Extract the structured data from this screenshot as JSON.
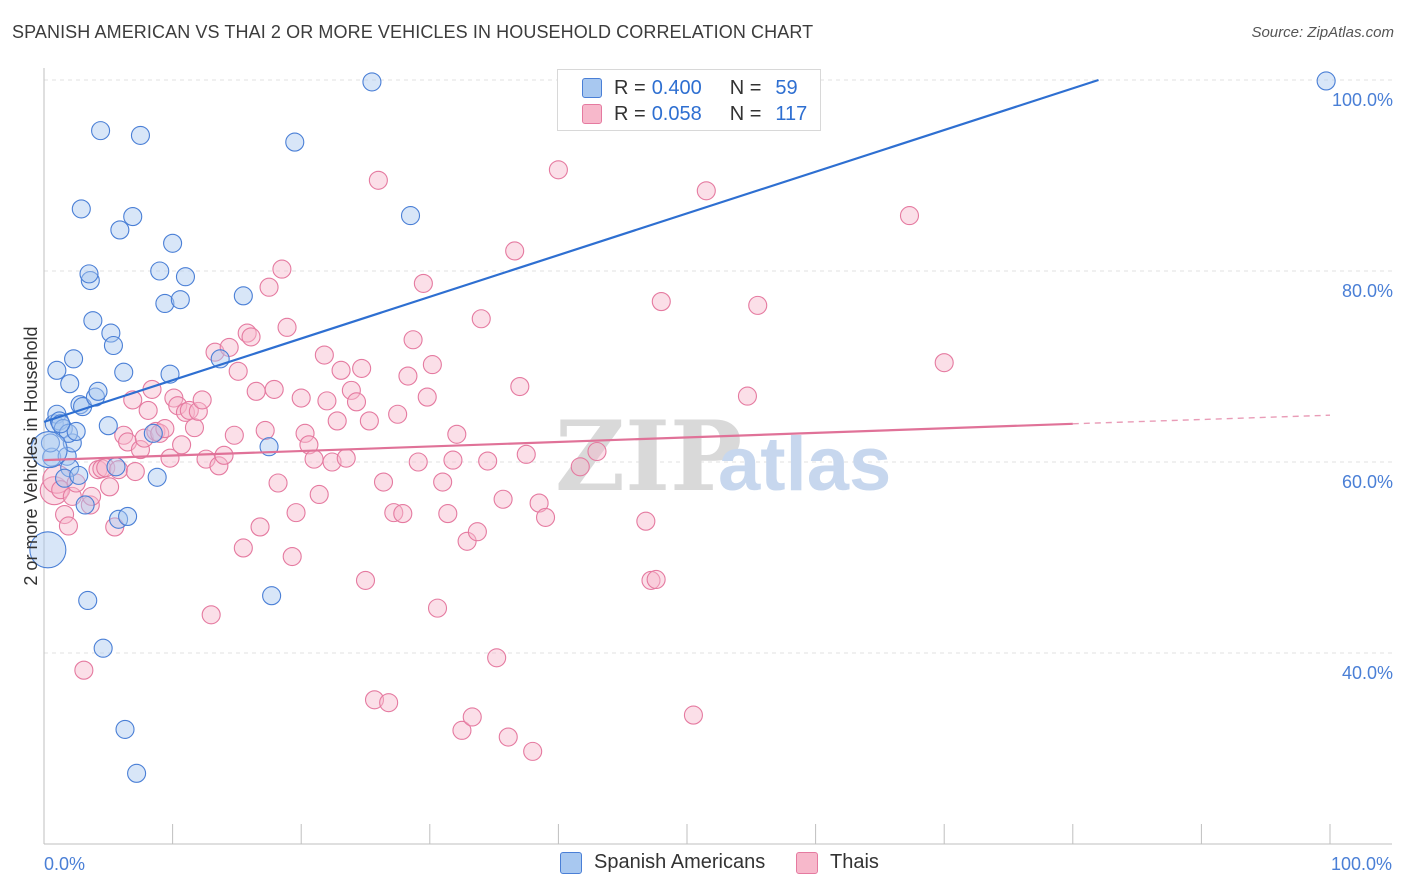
{
  "title": "SPANISH AMERICAN VS THAI 2 OR MORE VEHICLES IN HOUSEHOLD CORRELATION CHART",
  "source": "Source: ZipAtlas.com",
  "watermark": {
    "zip": "ZIP",
    "atlas": "atlas"
  },
  "legend_top": {
    "rows": [
      {
        "r_label": "R =",
        "r_value": "0.400",
        "n_label": "N =",
        "n_value": "59",
        "color": "#a8c8f0",
        "border": "#4a7fd6"
      },
      {
        "r_label": "R =",
        "r_value": "0.058",
        "n_label": "N =",
        "n_value": "117",
        "color": "#f7b8cb",
        "border": "#e57aa0"
      }
    ]
  },
  "legend_bottom": {
    "items": [
      {
        "label": "Spanish Americans",
        "color": "#a8c8f0",
        "border": "#4a7fd6"
      },
      {
        "label": "Thais",
        "color": "#f7b8cb",
        "border": "#e57aa0"
      }
    ]
  },
  "chart_data": {
    "type": "scatter",
    "title": "SPANISH AMERICAN VS THAI 2 OR MORE VEHICLES IN HOUSEHOLD CORRELATION CHART",
    "xlabel": "",
    "ylabel": "2 or more Vehicles in Household",
    "xlim": [
      0,
      100
    ],
    "ylim": [
      20,
      100
    ],
    "x_tick_labels": [
      "0.0%",
      "100.0%"
    ],
    "y_ticks": [
      40,
      60,
      80,
      100
    ],
    "y_tick_labels": [
      "40.0%",
      "60.0%",
      "80.0%",
      "100.0%"
    ],
    "grid": true,
    "legend_position": "top-center",
    "series": [
      {
        "name": "Spanish Americans",
        "color": "#a8c8f0",
        "stroke": "#4a7fd6",
        "trend": {
          "x0": 0,
          "y0": 64.2,
          "x1": 82,
          "y1": 100,
          "color": "#2e6fd1"
        },
        "points": [
          [
            0.3,
            50.8
          ],
          [
            0.6,
            60.5
          ],
          [
            0.5,
            62.0
          ],
          [
            0.8,
            64.0
          ],
          [
            1.0,
            65.0
          ],
          [
            1.2,
            64.3
          ],
          [
            1.5,
            63.5
          ],
          [
            1.8,
            60.6
          ],
          [
            2.0,
            59.4
          ],
          [
            2.2,
            62.0
          ],
          [
            2.0,
            68.2
          ],
          [
            2.3,
            70.8
          ],
          [
            1.0,
            69.6
          ],
          [
            1.6,
            58.3
          ],
          [
            1.9,
            63.0
          ],
          [
            2.5,
            63.2
          ],
          [
            2.8,
            66.0
          ],
          [
            3.0,
            65.8
          ],
          [
            3.2,
            55.5
          ],
          [
            3.4,
            45.5
          ],
          [
            3.6,
            79.0
          ],
          [
            3.5,
            79.7
          ],
          [
            3.8,
            74.8
          ],
          [
            4.0,
            66.8
          ],
          [
            4.2,
            67.4
          ],
          [
            4.4,
            94.7
          ],
          [
            2.9,
            86.5
          ],
          [
            5.0,
            63.8
          ],
          [
            5.2,
            73.5
          ],
          [
            5.4,
            72.2
          ],
          [
            5.6,
            59.5
          ],
          [
            5.8,
            54.0
          ],
          [
            5.9,
            84.3
          ],
          [
            6.2,
            69.4
          ],
          [
            6.3,
            32.0
          ],
          [
            7.2,
            27.4
          ],
          [
            6.9,
            85.7
          ],
          [
            7.5,
            94.2
          ],
          [
            8.5,
            63.0
          ],
          [
            8.8,
            58.4
          ],
          [
            9.0,
            80.0
          ],
          [
            9.4,
            76.6
          ],
          [
            9.8,
            69.2
          ],
          [
            10.0,
            82.9
          ],
          [
            10.6,
            77.0
          ],
          [
            11.0,
            79.4
          ],
          [
            13.7,
            70.8
          ],
          [
            15.5,
            77.4
          ],
          [
            17.5,
            61.6
          ],
          [
            17.7,
            46.0
          ],
          [
            19.5,
            93.5
          ],
          [
            25.5,
            99.8
          ],
          [
            28.5,
            85.8
          ],
          [
            0.4,
            61.3
          ],
          [
            1.3,
            64.0
          ],
          [
            2.7,
            58.6
          ],
          [
            4.6,
            40.5
          ],
          [
            6.5,
            54.3
          ],
          [
            99.7,
            99.9
          ]
        ]
      },
      {
        "name": "Thais",
        "color": "#f7b8cb",
        "stroke": "#e57aa0",
        "trend": {
          "x0": 0,
          "y0": 60.2,
          "x1": 80,
          "y1": 64.0,
          "x2": 100,
          "y2": 64.9,
          "color": "#e07298"
        },
        "points": [
          [
            0.8,
            57.0
          ],
          [
            1.0,
            58.2
          ],
          [
            1.3,
            57.1
          ],
          [
            1.6,
            54.5
          ],
          [
            1.9,
            53.3
          ],
          [
            2.2,
            56.4
          ],
          [
            2.5,
            57.8
          ],
          [
            3.1,
            38.2
          ],
          [
            3.6,
            55.5
          ],
          [
            3.7,
            56.4
          ],
          [
            4.2,
            59.2
          ],
          [
            4.5,
            59.3
          ],
          [
            4.8,
            59.4
          ],
          [
            5.1,
            57.4
          ],
          [
            5.5,
            53.2
          ],
          [
            5.8,
            59.2
          ],
          [
            6.2,
            62.8
          ],
          [
            6.5,
            62.1
          ],
          [
            6.9,
            66.5
          ],
          [
            7.1,
            59.0
          ],
          [
            7.5,
            61.3
          ],
          [
            7.8,
            62.5
          ],
          [
            8.1,
            65.4
          ],
          [
            8.4,
            67.6
          ],
          [
            8.7,
            63.2
          ],
          [
            9.0,
            63.0
          ],
          [
            9.4,
            63.5
          ],
          [
            9.8,
            60.4
          ],
          [
            10.1,
            66.7
          ],
          [
            10.4,
            65.9
          ],
          [
            10.7,
            61.8
          ],
          [
            11.0,
            65.2
          ],
          [
            11.3,
            65.4
          ],
          [
            11.7,
            63.6
          ],
          [
            12.0,
            65.3
          ],
          [
            12.3,
            66.5
          ],
          [
            12.6,
            60.3
          ],
          [
            13.0,
            44.0
          ],
          [
            13.3,
            71.5
          ],
          [
            13.6,
            59.6
          ],
          [
            14.0,
            60.7
          ],
          [
            14.4,
            72.0
          ],
          [
            14.8,
            62.8
          ],
          [
            15.1,
            69.5
          ],
          [
            15.5,
            51.0
          ],
          [
            15.8,
            73.5
          ],
          [
            16.1,
            73.1
          ],
          [
            16.5,
            67.4
          ],
          [
            16.8,
            53.2
          ],
          [
            17.2,
            63.3
          ],
          [
            17.5,
            78.3
          ],
          [
            17.9,
            67.6
          ],
          [
            18.2,
            57.8
          ],
          [
            18.5,
            80.2
          ],
          [
            18.9,
            74.1
          ],
          [
            19.3,
            50.1
          ],
          [
            19.6,
            54.7
          ],
          [
            20.0,
            66.7
          ],
          [
            20.3,
            63.0
          ],
          [
            20.6,
            61.8
          ],
          [
            21.0,
            60.3
          ],
          [
            21.4,
            56.6
          ],
          [
            21.8,
            71.2
          ],
          [
            22.0,
            66.4
          ],
          [
            22.4,
            60.0
          ],
          [
            22.8,
            64.3
          ],
          [
            23.1,
            69.6
          ],
          [
            23.5,
            60.4
          ],
          [
            23.9,
            67.5
          ],
          [
            24.3,
            66.3
          ],
          [
            24.7,
            69.8
          ],
          [
            25.0,
            47.6
          ],
          [
            25.3,
            64.3
          ],
          [
            25.7,
            35.1
          ],
          [
            26.0,
            89.5
          ],
          [
            26.4,
            57.9
          ],
          [
            26.8,
            34.8
          ],
          [
            27.2,
            54.7
          ],
          [
            27.5,
            65.0
          ],
          [
            27.9,
            54.6
          ],
          [
            28.3,
            69.0
          ],
          [
            28.7,
            72.8
          ],
          [
            29.1,
            60.0
          ],
          [
            29.5,
            78.7
          ],
          [
            29.8,
            66.8
          ],
          [
            30.2,
            70.2
          ],
          [
            30.6,
            44.7
          ],
          [
            31.0,
            57.9
          ],
          [
            31.4,
            54.6
          ],
          [
            31.8,
            60.2
          ],
          [
            32.1,
            62.9
          ],
          [
            32.5,
            31.9
          ],
          [
            32.9,
            51.7
          ],
          [
            33.3,
            33.3
          ],
          [
            33.7,
            52.7
          ],
          [
            34.0,
            75.0
          ],
          [
            34.5,
            60.1
          ],
          [
            35.2,
            39.5
          ],
          [
            35.7,
            56.1
          ],
          [
            36.1,
            31.2
          ],
          [
            36.6,
            82.1
          ],
          [
            37.0,
            67.9
          ],
          [
            37.5,
            60.8
          ],
          [
            38.0,
            29.7
          ],
          [
            38.5,
            55.7
          ],
          [
            39.0,
            54.2
          ],
          [
            40.0,
            90.6
          ],
          [
            41.7,
            59.5
          ],
          [
            43.0,
            61.1
          ],
          [
            46.8,
            53.8
          ],
          [
            47.2,
            47.6
          ],
          [
            47.6,
            47.7
          ],
          [
            48.0,
            76.8
          ],
          [
            50.5,
            33.5
          ],
          [
            51.5,
            88.4
          ],
          [
            54.7,
            66.9
          ],
          [
            55.5,
            76.4
          ],
          [
            67.3,
            85.8
          ],
          [
            70.0,
            70.4
          ]
        ]
      }
    ]
  }
}
